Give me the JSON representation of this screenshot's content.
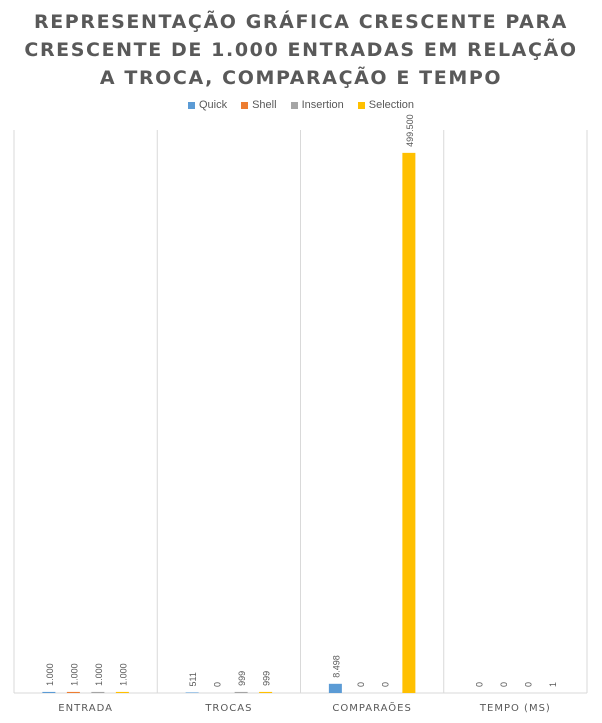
{
  "chart_data": {
    "type": "bar",
    "title": "REPRESENTAÇÃO GRÁFICA CRESCENTE PARA\nCRESCENTE DE 1.000 ENTRADAS EM RELAÇÃO\nA TROCA, COMPARAÇÃO E TEMPO",
    "categories": [
      "ENTRADA",
      "TROCAS",
      "COMPARAÕES",
      "TEMPO (MS)"
    ],
    "series": [
      {
        "name": "Quick",
        "color": "#5B9BD5",
        "values": [
          1000,
          511,
          8498,
          0
        ],
        "labels": [
          "1.000",
          "511",
          "8.498",
          "0"
        ]
      },
      {
        "name": "Shell",
        "color": "#ED7D31",
        "values": [
          1000,
          0,
          0,
          0
        ],
        "labels": [
          "1.000",
          "0",
          "0",
          "0"
        ]
      },
      {
        "name": "Insertion",
        "color": "#A5A5A5",
        "values": [
          1000,
          999,
          0,
          0
        ],
        "labels": [
          "1.000",
          "999",
          "0",
          "0"
        ]
      },
      {
        "name": "Selection",
        "color": "#FFC000",
        "values": [
          1000,
          999,
          499500,
          1
        ],
        "labels": [
          "1.000",
          "999",
          "499.500",
          "1"
        ]
      }
    ],
    "ylim": [
      0,
      590000
    ],
    "legend_position": "top",
    "grid": "vertical category separators"
  }
}
